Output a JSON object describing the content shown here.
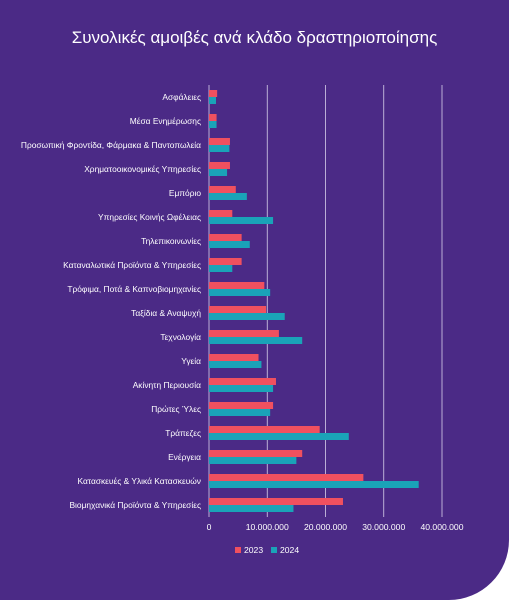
{
  "chart_data": {
    "type": "bar",
    "orientation": "horizontal",
    "title": "Συνολικές αμοιβές ανά κλάδο δραστηριοποίησης",
    "categories": [
      "Ασφάλειες",
      "Μέσα Ενημέρωσης",
      "Προσωπική Φροντίδα, Φάρμακα & Παντοπωλεία",
      "Χρηματοοικονομικές Υπηρεσίες",
      "Εμπόριο",
      "Υπηρεσίες Κοινής Ωφέλειας",
      "Τηλεπικοινωνίες",
      "Καταναλωτικά Προϊόντα & Υπηρεσίες",
      "Τρόφιμα, Ποτά & Καπνοβιομηχανίες",
      "Ταξίδια & Αναψυχή",
      "Τεχνολογία",
      "Υγεία",
      "Ακίνητη Περιουσία",
      "Πρώτες Ύλες",
      "Τράπεζες",
      "Ενέργεια",
      "Κατασκευές & Υλικά Κατασκευών",
      "Βιομηχανικά Προϊόντα & Υπηρεσίες"
    ],
    "series": [
      {
        "name": "2023",
        "color": "#f0505f",
        "values": [
          1400000,
          1300000,
          3600000,
          3600000,
          4600000,
          4000000,
          5600000,
          5600000,
          9500000,
          9800000,
          12000000,
          8500000,
          11500000,
          11000000,
          19000000,
          16000000,
          26500000,
          23000000
        ]
      },
      {
        "name": "2024",
        "color": "#1aa3b8",
        "values": [
          1200000,
          1300000,
          3500000,
          3100000,
          6500000,
          11000000,
          7000000,
          4000000,
          10500000,
          13000000,
          16000000,
          9000000,
          11000000,
          10500000,
          24000000,
          15000000,
          36000000,
          14500000
        ]
      }
    ],
    "x_ticks": [
      "0",
      "10.000.000",
      "20.000.000",
      "30.000.000",
      "40.000.000"
    ],
    "xlim": [
      0,
      40000000
    ],
    "grid": "vertical",
    "legend": "bottom"
  }
}
